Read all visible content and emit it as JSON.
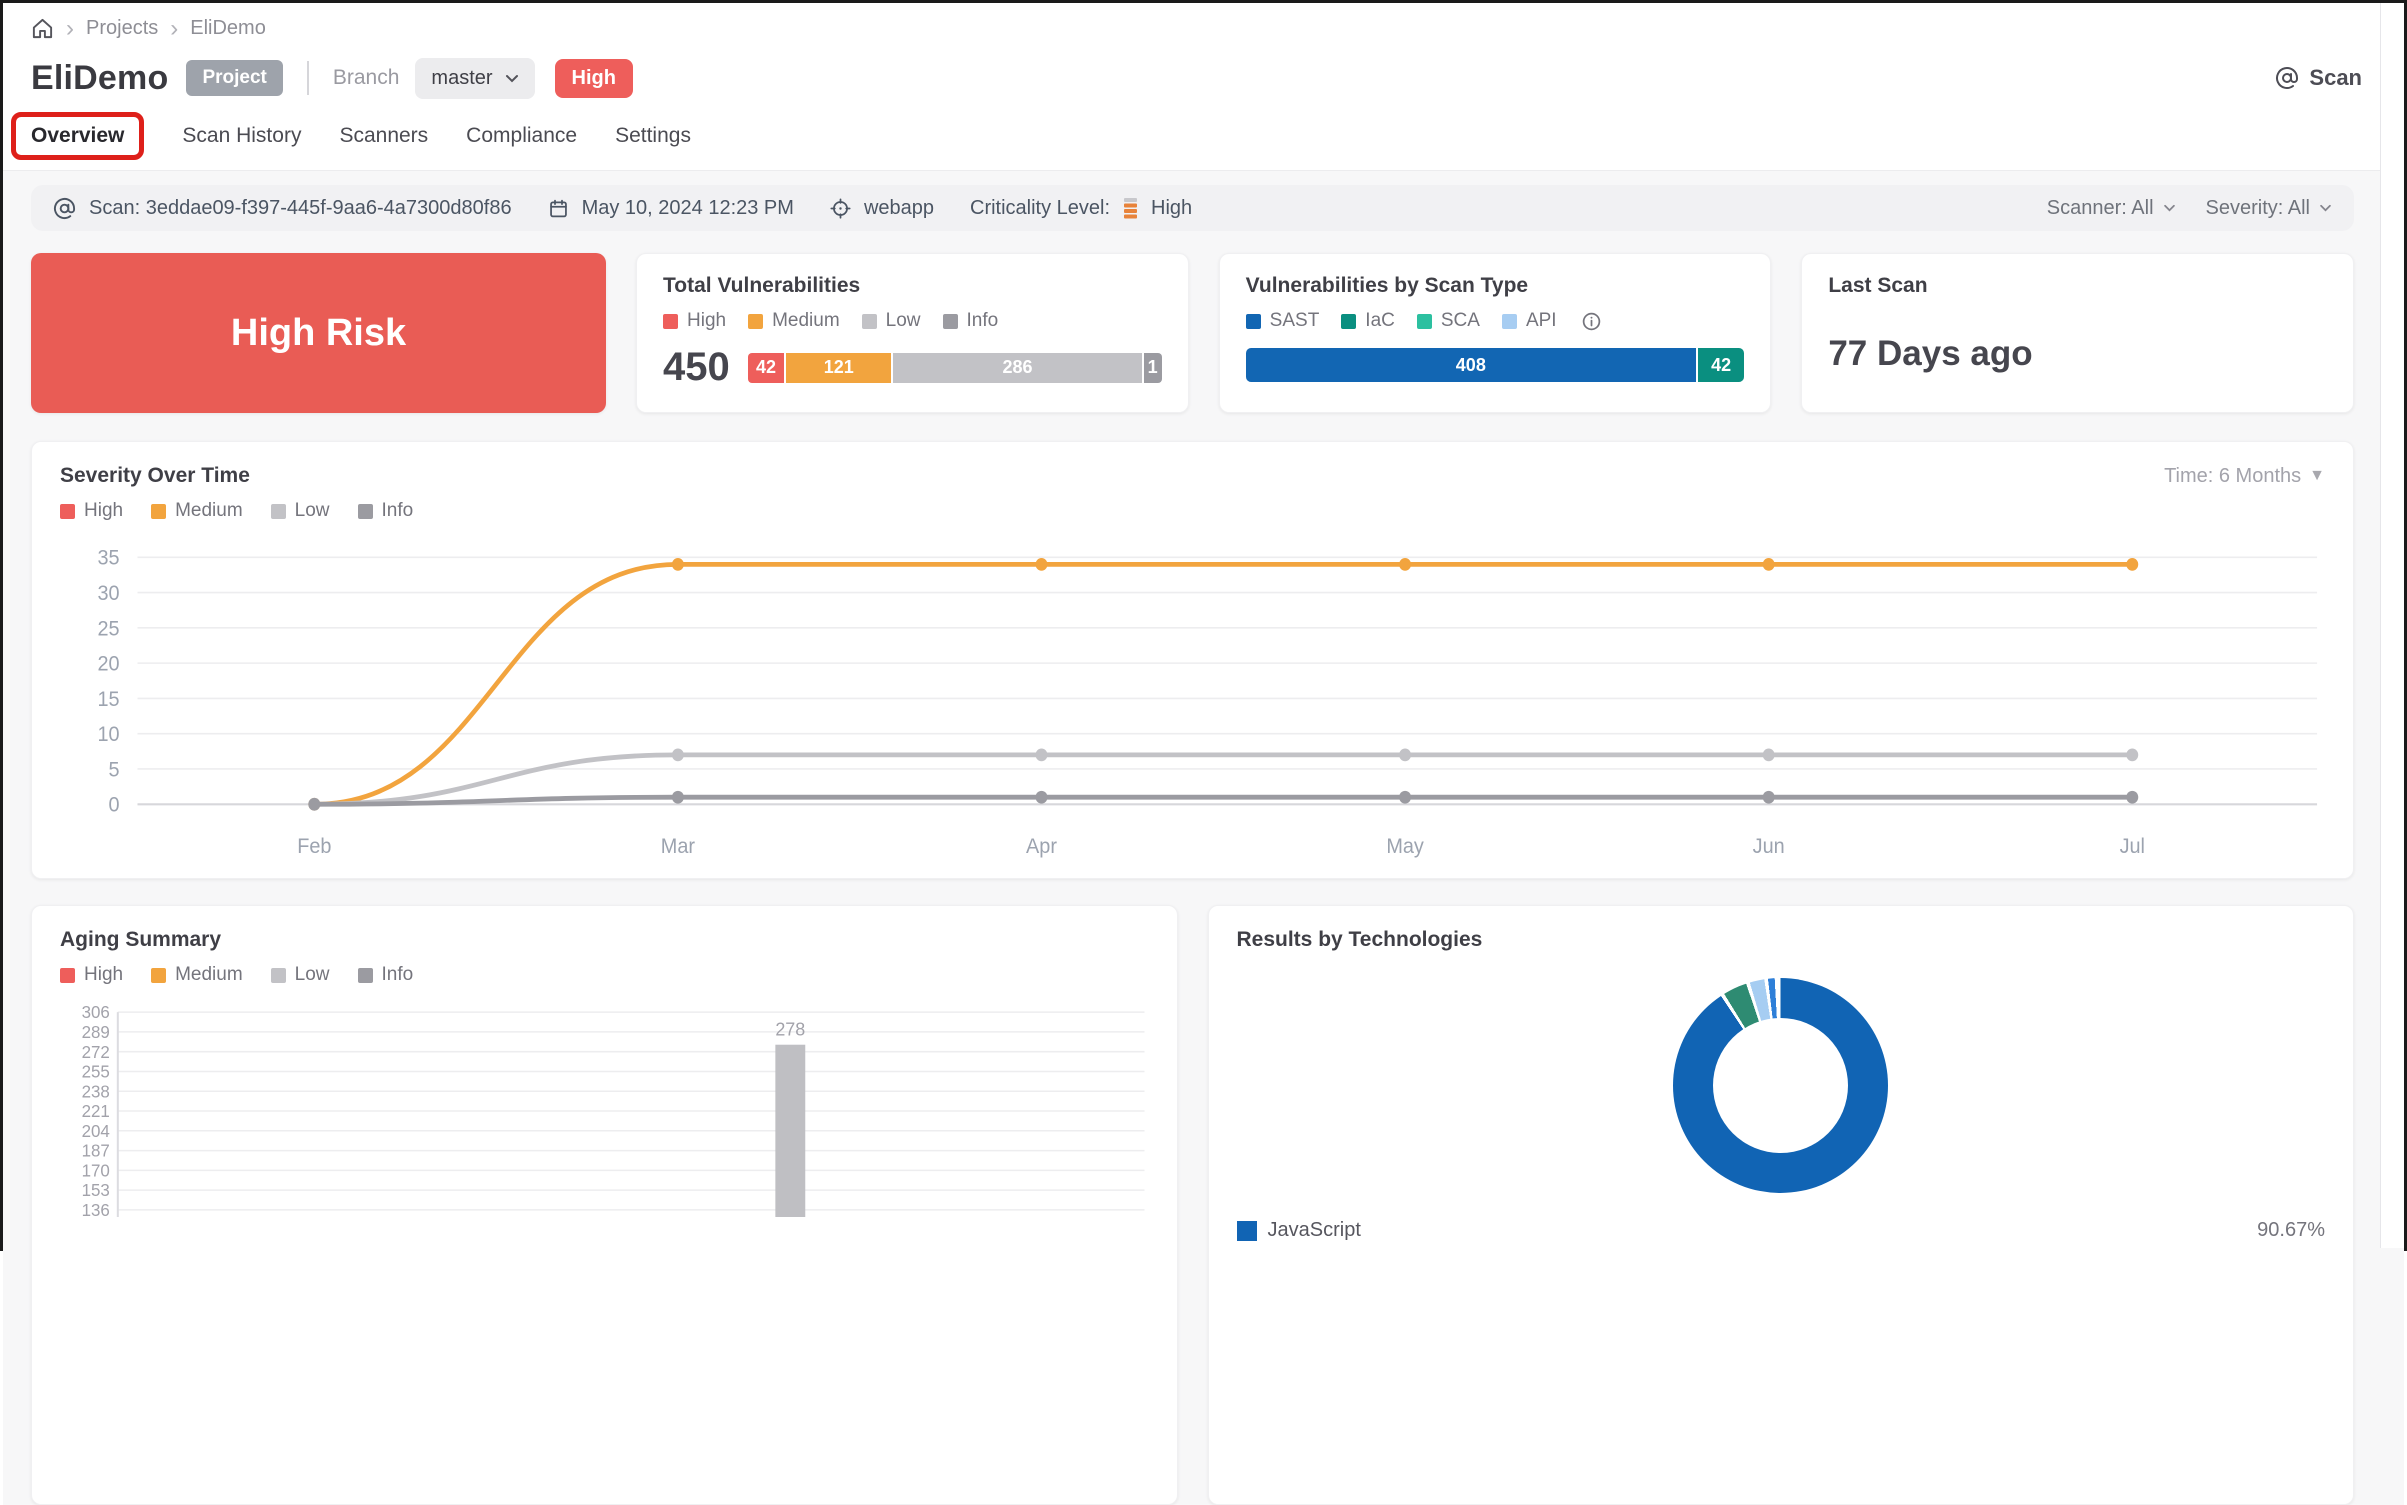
{
  "colors": {
    "high": "#ee5e5b",
    "medium": "#f2a43e",
    "low": "#c2c2c6",
    "info": "#9b9ba1",
    "sast": "#1266b3",
    "iac": "#0a8f80",
    "sca": "#2cc0a0",
    "api": "#a7cdf2",
    "risk_banner_bg": "#e95c55",
    "annotation_red": "#de201a",
    "javascript_blue": "#1164b4"
  },
  "breadcrumb": {
    "items": [
      "Projects",
      "EliDemo"
    ]
  },
  "header": {
    "title": "EliDemo",
    "type_badge": "Project",
    "branch_label": "Branch",
    "branch_value": "master",
    "criticality_badge": "High",
    "scan_button_label": "Scan"
  },
  "tabs": {
    "active": "Overview",
    "items": [
      "Overview",
      "Scan History",
      "Scanners",
      "Compliance",
      "Settings"
    ]
  },
  "scan_bar": {
    "scan_id_label": "Scan: 3eddae09-f397-445f-9aa6-4a7300d80f86",
    "scan_date": "May 10, 2024 12:23 PM",
    "target_name": "webapp",
    "criticality_label": "Criticality Level:",
    "criticality_value": "High",
    "scanner_filter_label": "Scanner: All",
    "severity_filter_label": "Severity: All"
  },
  "legends": {
    "severity": [
      {
        "label": "High",
        "color": "#ee5e5b"
      },
      {
        "label": "Medium",
        "color": "#f2a43e"
      },
      {
        "label": "Low",
        "color": "#c2c2c6"
      },
      {
        "label": "Info",
        "color": "#9b9ba1"
      }
    ],
    "scan_type": [
      {
        "label": "SAST",
        "color": "#1266b3"
      },
      {
        "label": "IaC",
        "color": "#0a8f80"
      },
      {
        "label": "SCA",
        "color": "#2cc0a0"
      },
      {
        "label": "API",
        "color": "#a7cdf2"
      }
    ]
  },
  "cards": {
    "risk_banner": {
      "label": "High Risk"
    },
    "total_vulnerabilities": {
      "title": "Total Vulnerabilities",
      "total": "450",
      "segments": [
        {
          "label": "42",
          "value": 42,
          "color": "#ee5e5b"
        },
        {
          "label": "121",
          "value": 121,
          "color": "#f2a43e"
        },
        {
          "label": "286",
          "value": 286,
          "color": "#c2c2c6"
        },
        {
          "label": "1",
          "value": 1,
          "color": "#9b9ba1"
        }
      ]
    },
    "scan_type": {
      "title": "Vulnerabilities by Scan Type",
      "segments": [
        {
          "label": "408",
          "value": 408,
          "color": "#1266b3"
        },
        {
          "label": "42",
          "value": 42,
          "color": "#0a8f80"
        }
      ]
    },
    "last_scan": {
      "title": "Last Scan",
      "value": "77 Days ago"
    }
  },
  "severity_over_time": {
    "title": "Severity Over Time",
    "time_filter": "Time: 6 Months"
  },
  "aging_summary": {
    "title": "Aging Summary"
  },
  "results_by_technologies": {
    "title": "Results by Technologies",
    "legend_row": {
      "label": "JavaScript",
      "value": "90.67%"
    }
  },
  "chart_data": [
    {
      "id": "severity_over_time",
      "type": "line",
      "title": "Severity Over Time",
      "x": [
        "Feb",
        "Mar",
        "Apr",
        "May",
        "Jun",
        "Jul"
      ],
      "ylim": [
        0,
        35
      ],
      "y_ticks": [
        0,
        5,
        10,
        15,
        20,
        25,
        30,
        35
      ],
      "grid": true,
      "legend_position": "top-left",
      "series": [
        {
          "name": "High",
          "color": "#ee5e5b",
          "values": [
            0,
            0,
            0,
            0,
            0,
            0
          ],
          "visible": false
        },
        {
          "name": "Medium",
          "color": "#f2a43e",
          "values": [
            0,
            34,
            34,
            34,
            34,
            34
          ],
          "visible": true
        },
        {
          "name": "Low",
          "color": "#c2c2c6",
          "values": [
            0,
            7,
            7,
            7,
            7,
            7
          ],
          "visible": true
        },
        {
          "name": "Info",
          "color": "#9b9ba1",
          "values": [
            0,
            1,
            1,
            1,
            1,
            1
          ],
          "visible": true
        }
      ]
    },
    {
      "id": "aging_summary",
      "type": "bar",
      "title": "Aging Summary",
      "y_ticks": [
        306,
        289,
        272,
        255,
        238,
        221,
        204,
        187,
        170,
        153,
        136
      ],
      "grid": true,
      "bars": [
        {
          "label": "278",
          "value": 278,
          "color": "#bfbfc3",
          "x_fraction": 0.655
        }
      ]
    },
    {
      "id": "results_by_technologies",
      "type": "pie",
      "title": "Results by Technologies",
      "slices": [
        {
          "label": "JavaScript",
          "pct": 90.67,
          "color": "#1164b4"
        },
        {
          "label": "",
          "pct": 3.6,
          "color": "#2e8b72"
        },
        {
          "label": "",
          "pct": 2.2,
          "color": "#a6cdf2"
        },
        {
          "label": "",
          "pct": 1.0,
          "color": "#2e7fd8"
        }
      ],
      "legend_visible": [
        {
          "label": "JavaScript",
          "value": "90.67%"
        }
      ]
    }
  ]
}
